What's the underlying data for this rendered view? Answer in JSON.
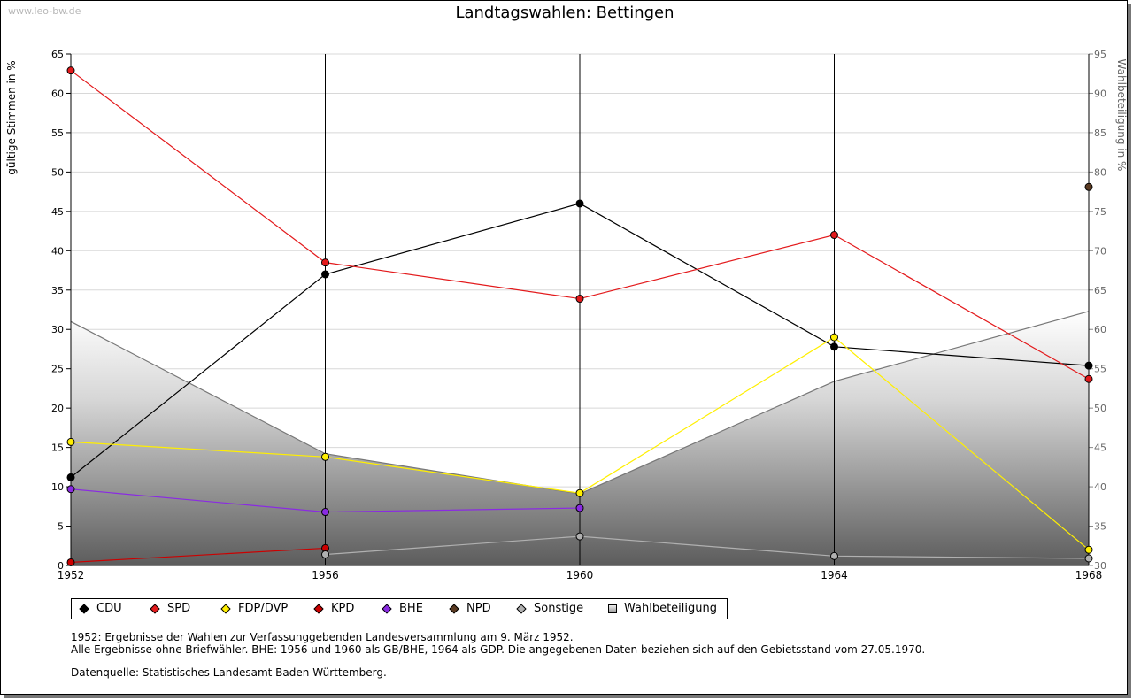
{
  "watermark": "www.leo-bw.de",
  "chart_data": {
    "type": "line",
    "title": "Landtagswahlen: Bettingen",
    "ylabel": "gültige Stimmen in %",
    "y2label": "Wahlbeteiligung in %",
    "ylim": [
      0,
      65
    ],
    "y2lim": [
      30,
      95
    ],
    "yticks": [
      0,
      5,
      10,
      15,
      20,
      25,
      30,
      35,
      40,
      45,
      50,
      55,
      60,
      65
    ],
    "y2ticks": [
      30,
      35,
      40,
      45,
      50,
      55,
      60,
      65,
      70,
      75,
      80,
      85,
      90,
      95
    ],
    "x": [
      1952,
      1956,
      1960,
      1964,
      1968
    ],
    "xtick_labels": [
      "1952",
      "1956",
      "1960",
      "1964",
      "1968"
    ],
    "grid": true,
    "series": [
      {
        "name": "CDU",
        "color": "#000000",
        "values": [
          11.2,
          37.0,
          46.0,
          27.8,
          25.4
        ]
      },
      {
        "name": "SPD",
        "color": "#e31a1c",
        "values": [
          62.9,
          38.5,
          33.9,
          42.0,
          23.7
        ]
      },
      {
        "name": "FDP/DVP",
        "color": "#ffef00",
        "values": [
          15.7,
          13.8,
          9.2,
          29.0,
          2.0
        ]
      },
      {
        "name": "KPD",
        "color": "#cc0000",
        "values": [
          0.4,
          2.2,
          null,
          null,
          null
        ]
      },
      {
        "name": "BHE",
        "color": "#8a2be2",
        "values": [
          9.7,
          6.8,
          7.3,
          null,
          null
        ]
      },
      {
        "name": "NPD",
        "color": "#5a3a22",
        "values": [
          null,
          null,
          null,
          null,
          48.1
        ]
      },
      {
        "name": "Sonstige",
        "color": "#b0b0b0",
        "values": [
          null,
          1.4,
          3.7,
          1.2,
          0.9
        ]
      }
    ],
    "area_series": {
      "name": "Wahlbeteiligung",
      "axis": "right",
      "values": [
        61.0,
        44.2,
        39.1,
        53.4,
        62.3
      ]
    },
    "legend": [
      "CDU",
      "SPD",
      "FDP/DVP",
      "KPD",
      "BHE",
      "NPD",
      "Sonstige",
      "Wahlbeteiligung"
    ],
    "legend_position": "bottom-left"
  },
  "notes": {
    "line1": "1952: Ergebnisse der Wahlen zur Verfassunggebenden Landesversammlung am 9. März 1952.",
    "line2": "Alle Ergebnisse ohne Briefwähler. BHE: 1956 und 1960 als GB/BHE, 1964 als GDP. Die angegebenen Daten beziehen sich auf den Gebietsstand vom 27.05.1970.",
    "source": "Datenquelle: Statistisches Landesamt Baden-Württemberg."
  }
}
